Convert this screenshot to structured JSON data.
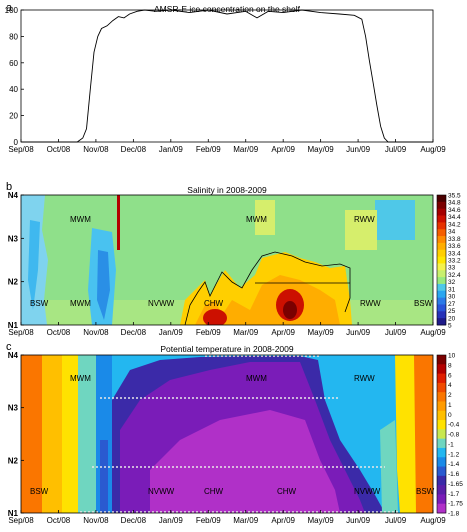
{
  "chart_data": [
    {
      "panel": "a",
      "type": "line",
      "title": "AMSR-E ice concentration on the shelf",
      "x_ticks": [
        "Sep/08",
        "Oct/08",
        "Nov/08",
        "Dec/08",
        "Jan/09",
        "Feb/09",
        "Mar/09",
        "Apr/09",
        "May/09",
        "Jun/09",
        "Jul/09",
        "Aug/09"
      ],
      "ylim": [
        0,
        100
      ],
      "y_ticks": [
        "0",
        "20",
        "40",
        "60",
        "80",
        "100"
      ],
      "x_range_months": [
        0,
        11
      ],
      "series": [
        {
          "x": [
            0,
            0.5,
            1.0,
            1.5,
            1.65,
            1.75,
            1.85,
            1.95,
            2.05,
            2.15,
            2.3,
            2.45,
            2.6,
            2.75,
            2.9,
            3.1,
            3.3,
            3.6,
            4.0,
            4.5,
            5.0,
            5.5,
            6.0,
            6.3,
            6.6,
            7.0,
            7.5,
            8.0,
            8.5,
            8.9,
            9.1,
            9.2,
            9.3,
            9.4,
            9.5,
            9.6,
            9.7,
            9.8,
            11.0
          ],
          "y": [
            0,
            0,
            0,
            0,
            3,
            10,
            40,
            68,
            80,
            86,
            88,
            92,
            95,
            94,
            97,
            99,
            100,
            99,
            100,
            98,
            100,
            97,
            99,
            94,
            99,
            98,
            100,
            98,
            97,
            96,
            93,
            80,
            62,
            45,
            28,
            12,
            3,
            0,
            0
          ]
        }
      ]
    },
    {
      "panel": "b",
      "type": "heatmap",
      "title": "Salinity in 2008-2009",
      "x_ticks": [
        "Sep/08",
        "Oct/08",
        "Nov/08",
        "Dec/08",
        "Jan/09",
        "Feb/09",
        "Mar/09",
        "Apr/09",
        "May/09",
        "Jun/09",
        "Jul/09",
        "Aug/09"
      ],
      "y_ticks": [
        "N1",
        "N2",
        "N3",
        "N4"
      ],
      "colorbar_ticks": [
        "35.5",
        "34.8",
        "34.6",
        "34.4",
        "34.2",
        "34",
        "33.8",
        "33.6",
        "33.4",
        "33.2",
        "33",
        "32.4",
        "32",
        "31",
        "30",
        "27",
        "25",
        "20",
        "5"
      ],
      "colorbar_colors": [
        "#4a0000",
        "#7a0000",
        "#a50000",
        "#cc1000",
        "#e63200",
        "#f55e00",
        "#ff8a00",
        "#ffad00",
        "#ffcf00",
        "#ffe600",
        "#f4f24b",
        "#c8f06e",
        "#98e97e",
        "#4fc8e8",
        "#2aa6f0",
        "#2c7ae8",
        "#2a54d8",
        "#2732b8",
        "#1f1b8a"
      ],
      "water_mass_labels": [
        "MWM",
        "MWM",
        "RWW",
        "BSW",
        "MWM",
        "NVWW",
        "CHW",
        "RWW",
        "BSW"
      ]
    },
    {
      "panel": "c",
      "type": "heatmap",
      "title": "Potential temperature in 2008-2009",
      "x_ticks": [
        "Sep/08",
        "Oct/08",
        "Nov/08",
        "Dec/08",
        "Jan/09",
        "Feb/09",
        "Mar/09",
        "Apr/09",
        "May/09",
        "Jun/09",
        "Jul/09",
        "Aug/09"
      ],
      "y_ticks": [
        "N1",
        "N2",
        "N3",
        "N4"
      ],
      "colorbar_ticks": [
        "10",
        "8",
        "6",
        "4",
        "2",
        "1",
        "0",
        "-0.4",
        "-0.8",
        "-1",
        "-1.2",
        "-1.4",
        "-1.6",
        "-1.65",
        "-1.7",
        "-1.75",
        "-1.8"
      ],
      "colorbar_colors": [
        "#7a0000",
        "#b30000",
        "#e01e00",
        "#f04a00",
        "#fa7600",
        "#ff9b00",
        "#ffbf00",
        "#ffe200",
        "#c8e850",
        "#6fd6c0",
        "#23b7f0",
        "#1a8ae8",
        "#2a5ad0",
        "#3b2aa8",
        "#5a1fa8",
        "#7a1cb8",
        "#b030c8"
      ],
      "water_mass_labels": [
        "MWM",
        "MWM",
        "RWW",
        "BSW",
        "NVWW",
        "CHW",
        "CHW",
        "NVWW",
        "BSW"
      ]
    }
  ],
  "panel_letters": {
    "a": "a",
    "b": "b",
    "c": "c"
  }
}
